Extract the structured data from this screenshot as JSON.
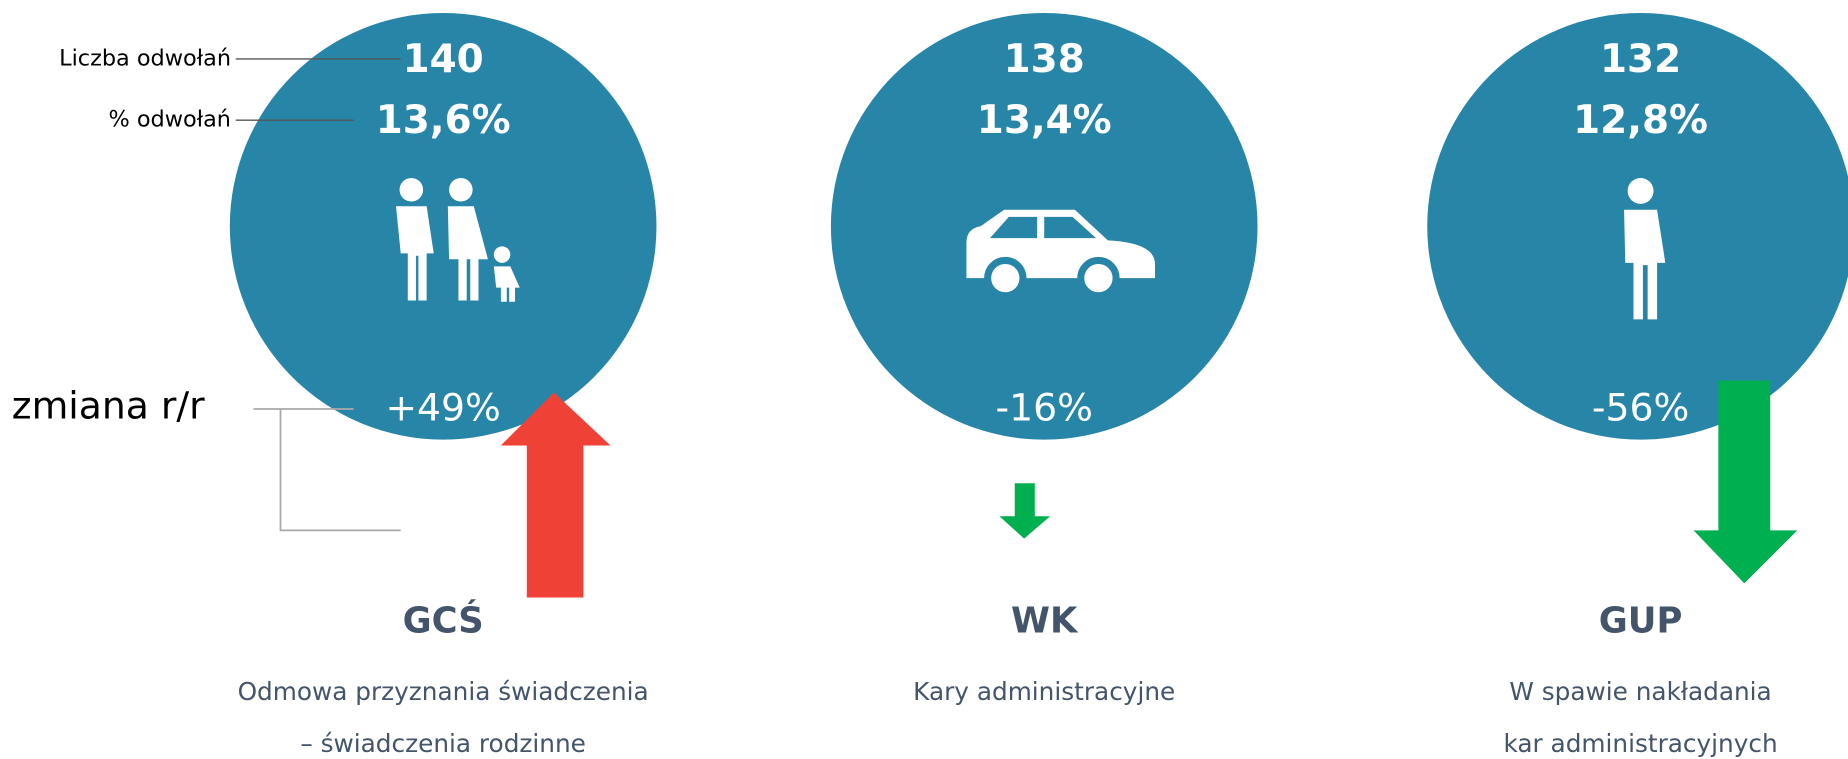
{
  "labels": {
    "count": "Liczba odwołań",
    "percent": "% odwołań",
    "change": "zmiana r/r"
  },
  "items": [
    {
      "count": "140",
      "percent": "13,6%",
      "change": "+49%",
      "code": "GCŚ",
      "description": [
        "Odmowa przyznania świadczenia",
        "– świadczenia rodzinne"
      ]
    },
    {
      "count": "138",
      "percent": "13,4%",
      "change": "-16%",
      "code": "WK",
      "description": [
        "Kary administracyjne"
      ]
    },
    {
      "count": "132",
      "percent": "12,8%",
      "change": "-56%",
      "code": "GUP",
      "description": [
        "W spawie nakładania",
        "kar administracyjnych"
      ]
    }
  ]
}
